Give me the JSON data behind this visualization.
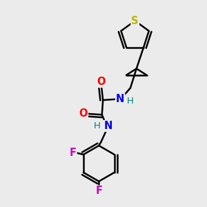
{
  "bg_color": "#ebebeb",
  "bond_color": "#000000",
  "bond_width": 1.8,
  "atoms": {
    "S": {
      "color": "#b8b800",
      "fontsize": 10.5,
      "fontweight": "bold"
    },
    "O": {
      "color": "#ff0000",
      "fontsize": 10.5,
      "fontweight": "bold"
    },
    "N": {
      "color": "#0000ee",
      "fontsize": 10.5,
      "fontweight": "bold"
    },
    "F": {
      "color": "#cc00cc",
      "fontsize": 10.5,
      "fontweight": "bold"
    },
    "H": {
      "color": "#008080",
      "fontsize": 9.5,
      "fontweight": "normal"
    }
  },
  "xlim": [
    0,
    10
  ],
  "ylim": [
    0,
    10
  ]
}
